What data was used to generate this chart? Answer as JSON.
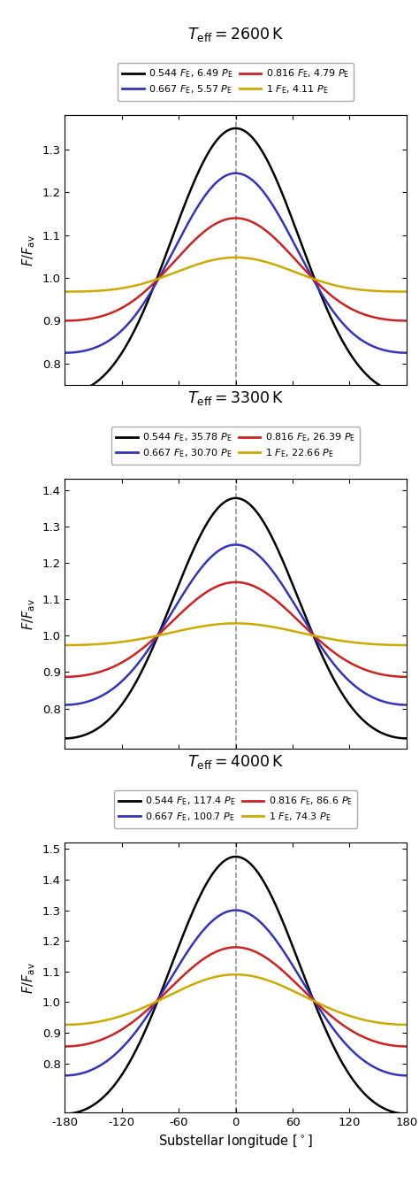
{
  "panels": [
    {
      "title": "$T_{\\mathrm{eff}} = 2600\\,\\mathrm{K}$",
      "ylim": [
        0.75,
        1.38
      ],
      "yticks": [
        0.8,
        0.9,
        1.0,
        1.1,
        1.2,
        1.3
      ],
      "series": [
        {
          "color": "black",
          "A1": 0.31,
          "A2": 0.04,
          "label_left": "0.544 $F_{\\mathrm{E}}$, 6.49 $P_{\\mathrm{E}}$"
        },
        {
          "color": "#3333bb",
          "A1": 0.21,
          "A2": 0.035,
          "label_left": "0.667 $F_{\\mathrm{E}}$, 5.57 $P_{\\mathrm{E}}$"
        },
        {
          "color": "#cc2222",
          "A1": 0.12,
          "A2": 0.02,
          "label_right": "0.816 $F_{\\mathrm{E}}$, 4.79 $P_{\\mathrm{E}}$"
        },
        {
          "color": "#ccaa00",
          "A1": 0.04,
          "A2": 0.008,
          "label_right": "1 $F_{\\mathrm{E}}$, 4.11 $P_{\\mathrm{E}}$"
        }
      ],
      "legend_labels_left": [
        "0.544 $F_{\\mathrm{E}}$, 6.49 $P_{\\mathrm{E}}$",
        "0.667 $F_{\\mathrm{E}}$, 5.57 $P_{\\mathrm{E}}$"
      ],
      "legend_labels_right": [
        "0.816 $F_{\\mathrm{E}}$, 4.79 $P_{\\mathrm{E}}$",
        "1 $F_{\\mathrm{E}}$, 4.11 $P_{\\mathrm{E}}$"
      ],
      "legend_colors_left": [
        "black",
        "#3333bb"
      ],
      "legend_colors_right": [
        "#cc2222",
        "#ccaa00"
      ]
    },
    {
      "title": "$T_{\\mathrm{eff}} = 3300\\,\\mathrm{K}$",
      "ylim": [
        0.69,
        1.43
      ],
      "yticks": [
        0.8,
        0.9,
        1.0,
        1.1,
        1.2,
        1.3,
        1.4
      ],
      "series": [
        {
          "color": "black",
          "A1": 0.33,
          "A2": 0.048
        },
        {
          "color": "#3333bb",
          "A1": 0.22,
          "A2": 0.03
        },
        {
          "color": "#cc2222",
          "A1": 0.13,
          "A2": 0.017
        },
        {
          "color": "#ccaa00",
          "A1": 0.03,
          "A2": 0.004
        }
      ],
      "legend_labels_left": [
        "0.544 $F_{\\mathrm{E}}$, 35.78 $P_{\\mathrm{E}}$",
        "0.667 $F_{\\mathrm{E}}$, 30.70 $P_{\\mathrm{E}}$"
      ],
      "legend_labels_right": [
        "0.816 $F_{\\mathrm{E}}$, 26.39 $P_{\\mathrm{E}}$",
        "1 $F_{\\mathrm{E}}$, 22.66 $P_{\\mathrm{E}}$"
      ],
      "legend_colors_left": [
        "black",
        "#3333bb"
      ],
      "legend_colors_right": [
        "#cc2222",
        "#ccaa00"
      ]
    },
    {
      "title": "$T_{\\mathrm{eff}} = 4000\\,\\mathrm{K}$",
      "ylim": [
        0.64,
        1.52
      ],
      "yticks": [
        0.8,
        0.9,
        1.0,
        1.1,
        1.2,
        1.3,
        1.4,
        1.5
      ],
      "series": [
        {
          "color": "black",
          "A1": 0.42,
          "A2": 0.055
        },
        {
          "color": "#3333bb",
          "A1": 0.27,
          "A2": 0.03
        },
        {
          "color": "#cc2222",
          "A1": 0.162,
          "A2": 0.017
        },
        {
          "color": "#ccaa00",
          "A1": 0.082,
          "A2": 0.008
        }
      ],
      "legend_labels_left": [
        "0.544 $F_{\\mathrm{E}}$, 117.4 $P_{\\mathrm{E}}$",
        "0.667 $F_{\\mathrm{E}}$, 100.7 $P_{\\mathrm{E}}$"
      ],
      "legend_labels_right": [
        "0.816 $F_{\\mathrm{E}}$, 86.6 $P_{\\mathrm{E}}$",
        "1 $F_{\\mathrm{E}}$, 74.3 $P_{\\mathrm{E}}$"
      ],
      "legend_colors_left": [
        "black",
        "#3333bb"
      ],
      "legend_colors_right": [
        "#cc2222",
        "#ccaa00"
      ]
    }
  ],
  "xlabel": "Substellar longitude [$^\\circ$]",
  "ylabel": "$F/F_{\\mathrm{av}}$",
  "xlim": [
    -180,
    180
  ],
  "xticks": [
    -180,
    -120,
    -60,
    0,
    60,
    120,
    180
  ]
}
